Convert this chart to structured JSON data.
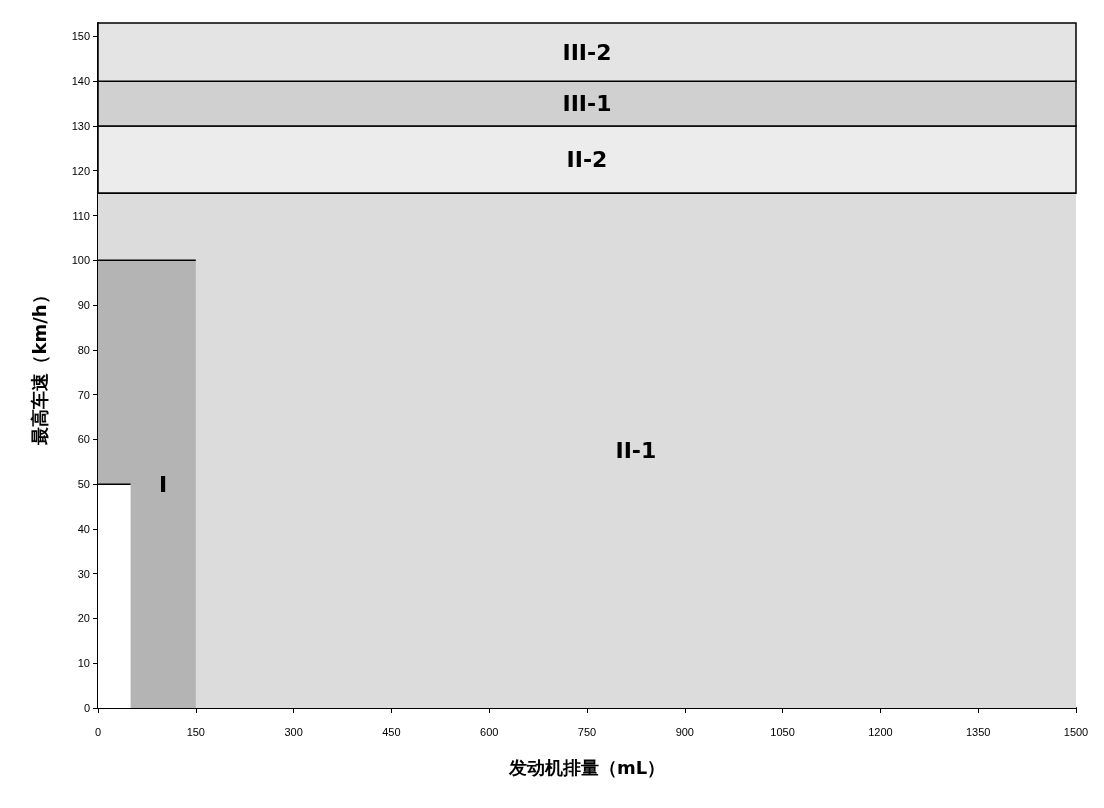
{
  "chart_data": {
    "type": "area",
    "xlabel": "发动机排量（mL）",
    "ylabel": "最高车速（km/h）",
    "xlim": [
      0,
      1500
    ],
    "xticks": [
      0,
      150,
      300,
      450,
      600,
      750,
      900,
      1050,
      1200,
      1350,
      1500
    ],
    "ylim": [
      0,
      153
    ],
    "yticks": [
      0,
      10,
      20,
      30,
      40,
      50,
      60,
      70,
      80,
      90,
      100,
      110,
      120,
      130,
      140,
      150
    ],
    "grid": false,
    "legend": false,
    "series": [
      {
        "name": "II-1",
        "color": "#dcdcdc",
        "x": [
          0,
          1500
        ],
        "values": [
          115,
          115
        ]
      },
      {
        "name": "I",
        "color": "#b4b4b4",
        "x": [
          0,
          150
        ],
        "values": [
          100,
          100
        ]
      },
      {
        "color": "#ffffff",
        "x": [
          0,
          50
        ],
        "values": [
          50,
          50
        ]
      }
    ],
    "bands": [
      {
        "axis": "y",
        "from": 115,
        "to": 130,
        "label": "II-2",
        "color": "#ececec"
      },
      {
        "axis": "y",
        "from": 130,
        "to": 140,
        "label": "III-1",
        "color": "#d0d0d0"
      },
      {
        "axis": "y",
        "from": 140,
        "to": 153,
        "label": "III-2",
        "color": "#e4e4e4"
      }
    ]
  }
}
